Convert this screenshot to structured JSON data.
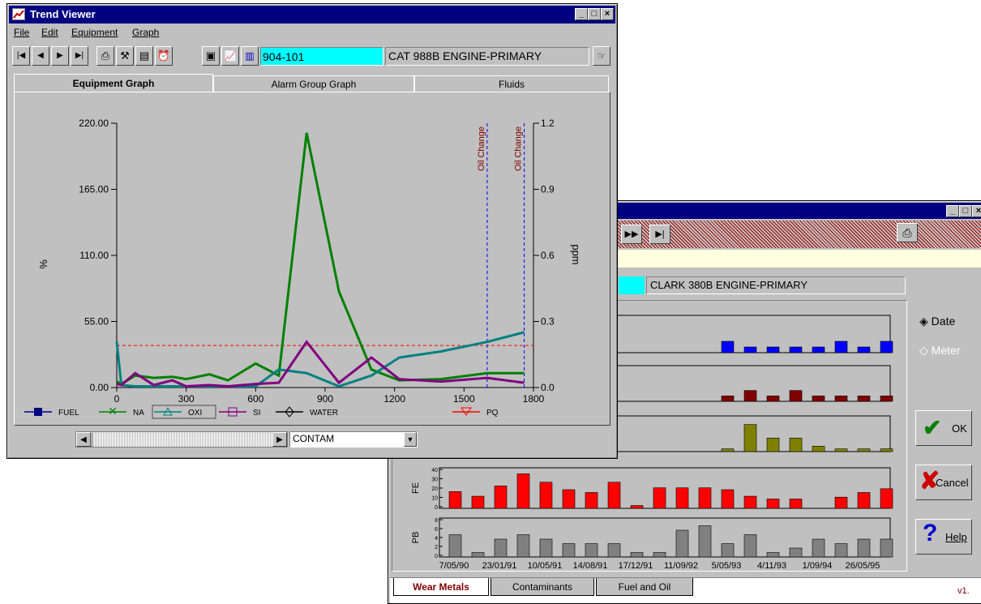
{
  "trend_viewer": {
    "title": "Trend Viewer",
    "menu": [
      "File",
      "Edit",
      "Equipment",
      "Graph"
    ],
    "equipment_id": "904-101",
    "equipment_desc": "CAT 988B ENGINE-PRIMARY",
    "tabs": [
      "Equipment Graph",
      "Alarm Group Graph",
      "Fluids"
    ],
    "active_tab": "Equipment Graph",
    "dropdown_value": "CONTAM",
    "legend": [
      "FUEL",
      "NA",
      "OXI",
      "SI",
      "WATER",
      "PQ"
    ],
    "annotation": "Oil Change"
  },
  "chart_data": {
    "type": "line",
    "ylabel_left": "%",
    "ylabel_right": "ppm",
    "x_ticks": [
      "0",
      "300",
      "600",
      "900",
      "1200",
      "1500",
      "1800"
    ],
    "y_left_ticks": [
      "0.00",
      "55.00",
      "110.00",
      "165.00",
      "220.00"
    ],
    "y_right_ticks": [
      "0.0",
      "0.3",
      "0.6",
      "0.9",
      "1.2"
    ],
    "xlim": [
      0,
      1800
    ],
    "ylim_left": [
      0,
      220
    ],
    "ylim_right": [
      0,
      1.2
    ],
    "alarm_level": 35,
    "oil_change_x": [
      1600,
      1760
    ],
    "series": [
      {
        "name": "NA",
        "color": "#008000",
        "x": [
          0,
          20,
          80,
          160,
          240,
          300,
          400,
          480,
          600,
          700,
          820,
          960,
          1100,
          1220,
          1400,
          1600,
          1760
        ],
        "y": [
          5,
          3,
          10,
          8,
          9,
          7,
          11,
          6,
          20,
          10,
          212,
          80,
          15,
          6,
          7,
          12,
          12
        ]
      },
      {
        "name": "OXI",
        "color": "#008080",
        "x": [
          0,
          20,
          80,
          160,
          240,
          300,
          400,
          480,
          600,
          700,
          820,
          960,
          1100,
          1220,
          1400,
          1600,
          1760
        ],
        "y": [
          38,
          2,
          1,
          1,
          1,
          1,
          1,
          1,
          1,
          15,
          12,
          1,
          10,
          25,
          30,
          38,
          46
        ]
      },
      {
        "name": "SI",
        "color": "#800080",
        "x": [
          0,
          20,
          80,
          160,
          240,
          300,
          400,
          480,
          600,
          700,
          820,
          960,
          1100,
          1220,
          1400,
          1600,
          1760
        ],
        "y": [
          3,
          2,
          12,
          2,
          6,
          1,
          2,
          1,
          3,
          4,
          38,
          4,
          25,
          7,
          5,
          8,
          4
        ]
      }
    ]
  },
  "wear_window": {
    "equipment_desc": "CLARK 380B ENGINE-PRIMARY",
    "radio_date": "Date",
    "radio_meter": "Meter",
    "ok_label": "OK",
    "cancel_label": "Cancel",
    "help_label": "Help",
    "tabs": [
      "Wear Metals",
      "Contaminants",
      "Fuel and Oil"
    ],
    "version": "v1.",
    "fe_label": "FE",
    "pb_label": "PB",
    "fe_ticks": [
      "40",
      "30",
      "20",
      "10",
      "0"
    ],
    "pb_ticks": [
      "8",
      "6",
      "4",
      "2",
      "0"
    ],
    "dates": [
      "7/05/90",
      "23/01/91",
      "10/05/91",
      "14/08/91",
      "17/12/91",
      "11/09/92",
      "5/05/93",
      "4/11/93",
      "1/09/94",
      "26/05/95"
    ]
  },
  "bar_chart_data": {
    "type": "bar",
    "x": [
      "7/05/90",
      "",
      "23/01/91",
      "",
      "10/05/91",
      "",
      "14/08/91",
      "",
      "17/12/91",
      "",
      "11/09/92",
      "",
      "5/05/93",
      "",
      "4/11/93",
      "",
      "1/09/94",
      "",
      "26/05/95",
      ""
    ],
    "series": [
      {
        "name": "FE",
        "color": "#ff0000",
        "ylim": [
          0,
          40
        ],
        "values": [
          18,
          13,
          24,
          37,
          28,
          20,
          17,
          28,
          3,
          22,
          22,
          22,
          20,
          13,
          10,
          10,
          0,
          12,
          17,
          21
        ]
      },
      {
        "name": "PB",
        "color": "#808080",
        "ylim": [
          0,
          8
        ],
        "values": [
          5,
          1,
          4,
          5,
          4,
          3,
          3,
          3,
          1,
          1,
          6,
          7,
          3,
          5,
          1,
          2,
          4,
          3,
          4,
          4
        ]
      },
      {
        "color": "#0000ff",
        "values": [
          0,
          0,
          0,
          0,
          0,
          0,
          0,
          0,
          0,
          0,
          0,
          0,
          2,
          1,
          1,
          1,
          1,
          2,
          1,
          2
        ]
      },
      {
        "color": "#800000",
        "values": [
          0,
          0,
          0,
          0,
          0,
          0,
          0,
          0,
          0,
          0,
          0,
          0,
          1,
          2,
          1,
          2,
          1,
          1,
          1,
          1
        ]
      },
      {
        "color": "#808000",
        "values": [
          0,
          0,
          0,
          0,
          0,
          0,
          0,
          0,
          0,
          0,
          0,
          0,
          0.5,
          5,
          2.5,
          2.5,
          1,
          0.5,
          0.5,
          0.5
        ]
      }
    ]
  }
}
